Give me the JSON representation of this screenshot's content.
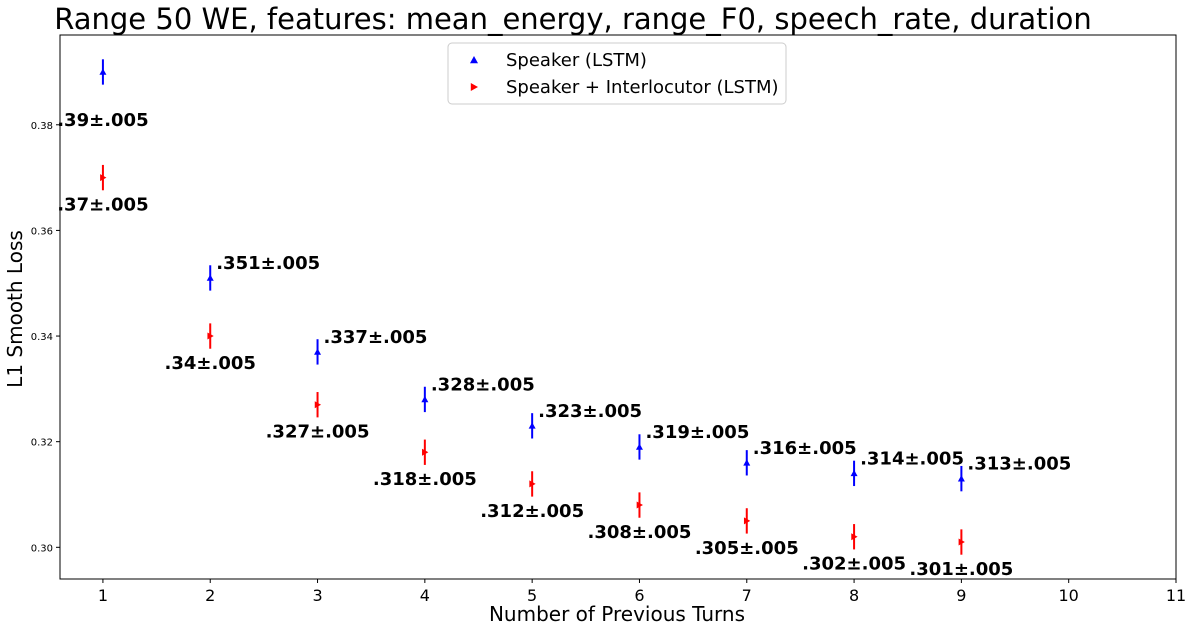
{
  "chart_data": {
    "type": "scatter",
    "title": "Range 50 WE, features: mean_energy, range_F0, speech_rate, duration",
    "xlabel": "Number of Previous Turns",
    "ylabel": "L1 Smooth Loss",
    "xlim": [
      0.6,
      11
    ],
    "ylim": [
      0.294,
      0.397
    ],
    "xticks": [
      1,
      2,
      3,
      4,
      5,
      6,
      7,
      8,
      9,
      10,
      11
    ],
    "yticks": [
      "0.30",
      "0.32",
      "0.34",
      "0.36",
      "0.38"
    ],
    "ytick_values": [
      0.3,
      0.32,
      0.34,
      0.36,
      0.38
    ],
    "grid": false,
    "legend_position": "top-center",
    "series": [
      {
        "name": "Speaker (LSTM)",
        "color": "#0000ff",
        "marker": "triangle-up",
        "x": [
          1,
          2,
          3,
          4,
          5,
          6,
          7,
          8,
          9
        ],
        "y": [
          0.39,
          0.351,
          0.337,
          0.328,
          0.323,
          0.319,
          0.316,
          0.314,
          0.313
        ],
        "error": [
          0.0024,
          0.0024,
          0.0024,
          0.0024,
          0.0024,
          0.0024,
          0.0024,
          0.0024,
          0.0024
        ],
        "labels": [
          ".39±.005",
          ".351±.005",
          ".337±.005",
          ".328±.005",
          ".323±.005",
          ".319±.005",
          ".316±.005",
          ".314±.005",
          ".313±.005"
        ]
      },
      {
        "name": "Speaker + Interlocutor (LSTM)",
        "color": "#ff0000",
        "marker": "triangle-right",
        "x": [
          1,
          2,
          3,
          4,
          5,
          6,
          7,
          8,
          9
        ],
        "y": [
          0.37,
          0.34,
          0.327,
          0.318,
          0.312,
          0.308,
          0.305,
          0.302,
          0.301
        ],
        "error": [
          0.0024,
          0.0024,
          0.0024,
          0.0024,
          0.0024,
          0.0024,
          0.0024,
          0.0024,
          0.0024
        ],
        "labels": [
          ".37±.005",
          ".34±.005",
          ".327±.005",
          ".318±.005",
          ".312±.005",
          ".308±.005",
          ".305±.005",
          ".302±.005",
          ".301±.005"
        ]
      }
    ]
  }
}
